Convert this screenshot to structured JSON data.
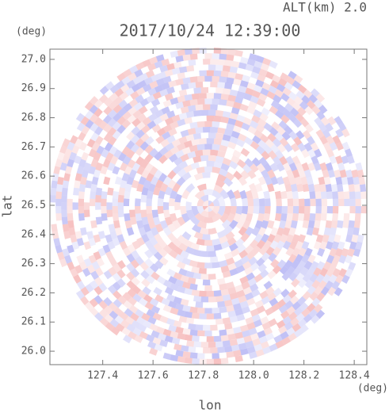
{
  "chart_data": {
    "type": "radar-field",
    "title": "2017/10/24 12:39:00",
    "annotation": "ALT(km) 2.0",
    "x_label": "lon",
    "y_label": "lat",
    "x_unit": "(deg)",
    "y_unit": "(deg)",
    "xlim": [
      127.19,
      128.45
    ],
    "ylim": [
      25.954,
      27.035
    ],
    "xticks": [
      127.4,
      127.6,
      127.8,
      {
        "value": 128.0,
        "label": "128.0"
      },
      128.2,
      128.4
    ],
    "yticks": [
      {
        "value": 26.0,
        "label": "26.0"
      },
      26.1,
      26.2,
      26.3,
      26.4,
      26.5,
      26.6,
      26.7,
      26.8,
      26.9,
      {
        "value": 27.0,
        "label": "27.0"
      }
    ],
    "positive_color": "#f08c8c",
    "negative_color": "#8c8cee"
  }
}
